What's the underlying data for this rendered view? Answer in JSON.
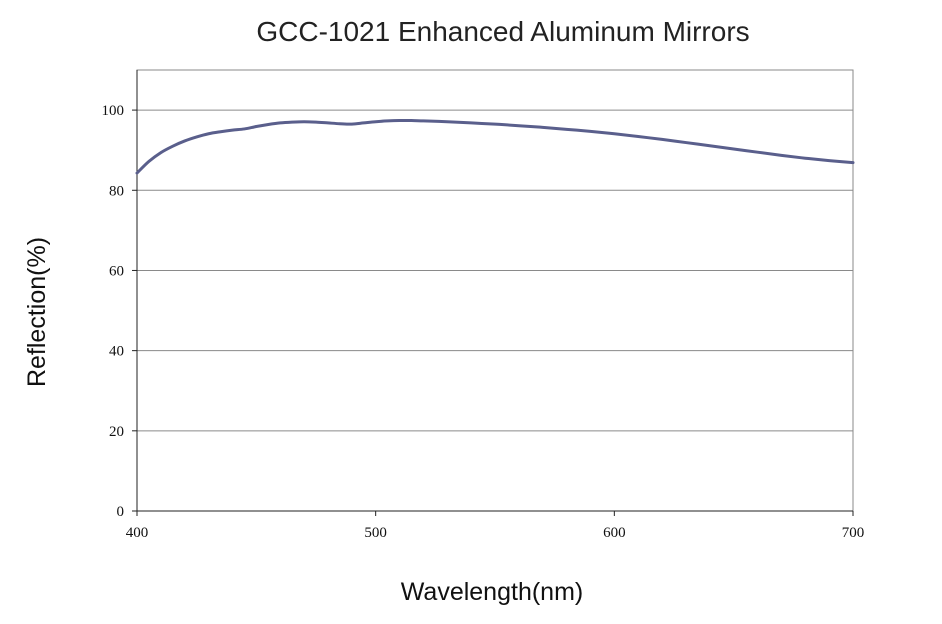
{
  "chart_data": {
    "type": "line",
    "title": "GCC-1021 Enhanced Aluminum Mirrors",
    "xlabel": "Wavelength(nm)",
    "ylabel": "Reflection(%)",
    "xlim": [
      400,
      700
    ],
    "ylim": [
      0,
      110
    ],
    "xticks": [
      400,
      500,
      600,
      700
    ],
    "yticks": [
      0,
      20,
      40,
      60,
      80,
      100
    ],
    "grid": "horizontal",
    "legend": "none",
    "series": [
      {
        "color": "#5a5f8c",
        "x": [
          400,
          405,
          410,
          415,
          420,
          425,
          430,
          435,
          440,
          445,
          450,
          455,
          460,
          465,
          470,
          475,
          480,
          485,
          490,
          495,
          500,
          505,
          510,
          515,
          520,
          530,
          540,
          550,
          560,
          570,
          580,
          590,
          600,
          610,
          620,
          630,
          640,
          650,
          660,
          670,
          680,
          690,
          700
        ],
        "y": [
          84.3,
          87.2,
          89.4,
          91.0,
          92.3,
          93.3,
          94.1,
          94.6,
          95.0,
          95.3,
          95.9,
          96.4,
          96.8,
          97.0,
          97.1,
          97.0,
          96.8,
          96.6,
          96.5,
          96.8,
          97.1,
          97.3,
          97.4,
          97.4,
          97.3,
          97.1,
          96.8,
          96.5,
          96.1,
          95.7,
          95.2,
          94.7,
          94.1,
          93.4,
          92.7,
          91.9,
          91.1,
          90.3,
          89.5,
          88.7,
          88.0,
          87.4,
          86.9
        ]
      }
    ]
  }
}
